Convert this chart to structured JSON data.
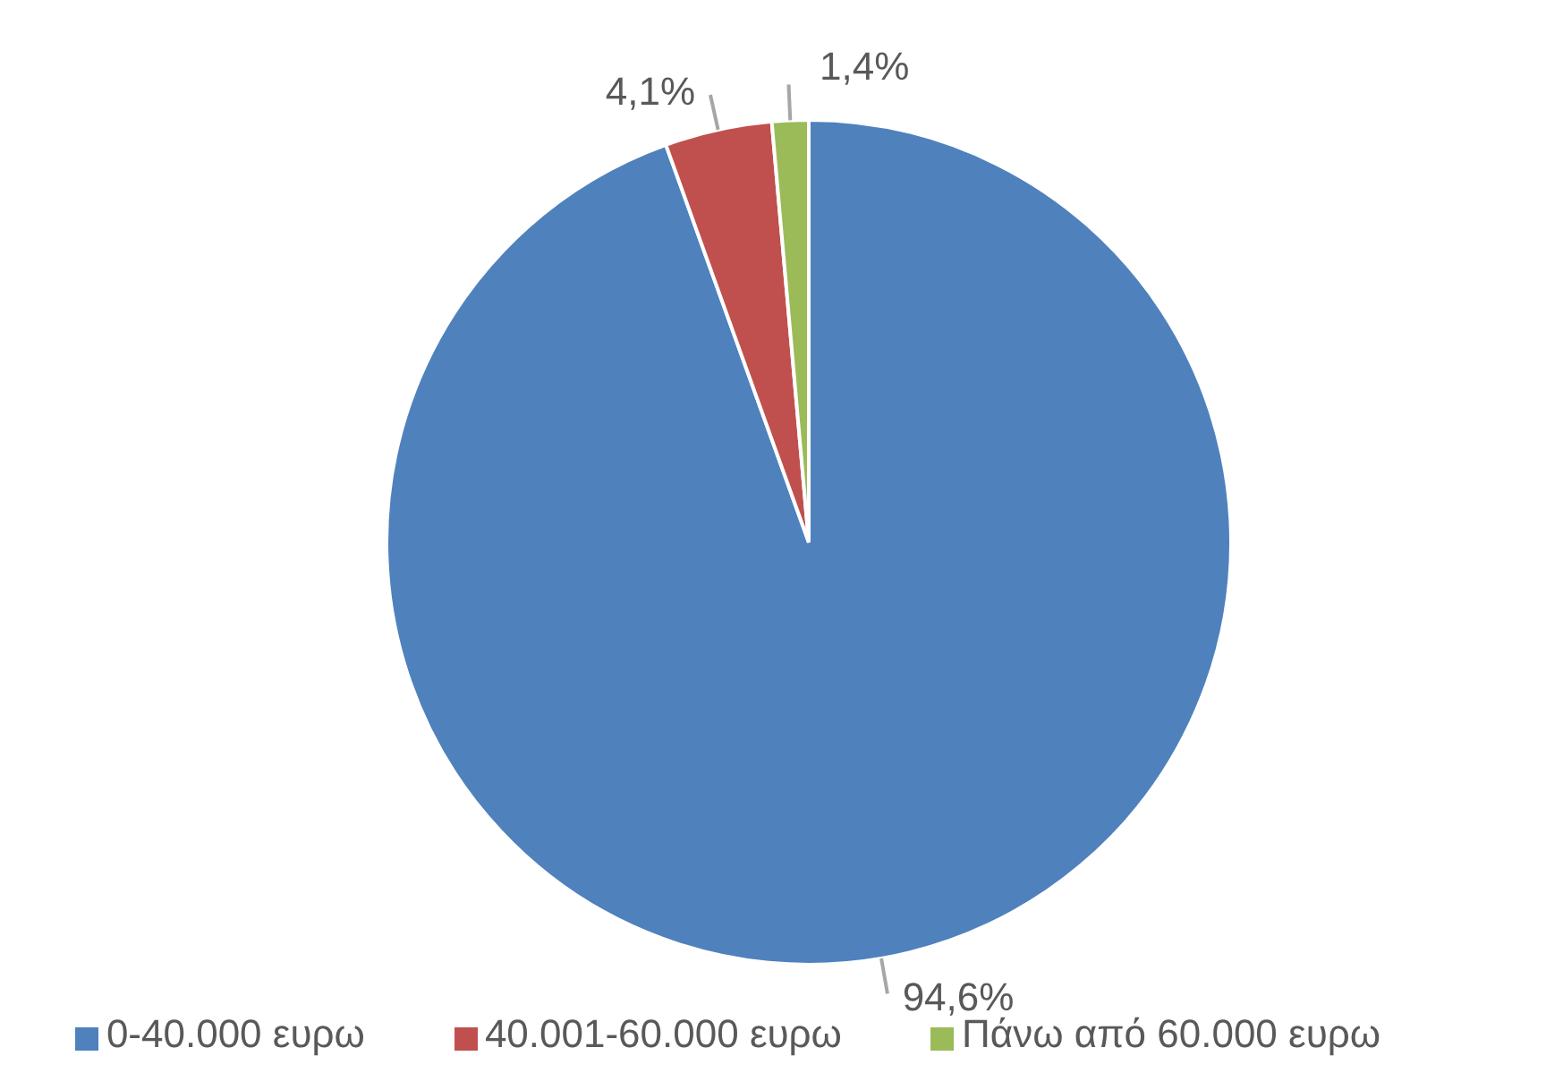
{
  "chart_data": {
    "type": "pie",
    "categories": [
      "0-40.000 ευρω",
      "40.001-60.000 ευρω",
      "Πάνω από 60.000 ευρω"
    ],
    "values": [
      94.6,
      4.1,
      1.4
    ],
    "colors": [
      "#4f81bd",
      "#c0504d",
      "#9bbb59"
    ],
    "value_labels": [
      "94,6%",
      "4,1%",
      "1,4%"
    ],
    "legend": "bottom"
  }
}
